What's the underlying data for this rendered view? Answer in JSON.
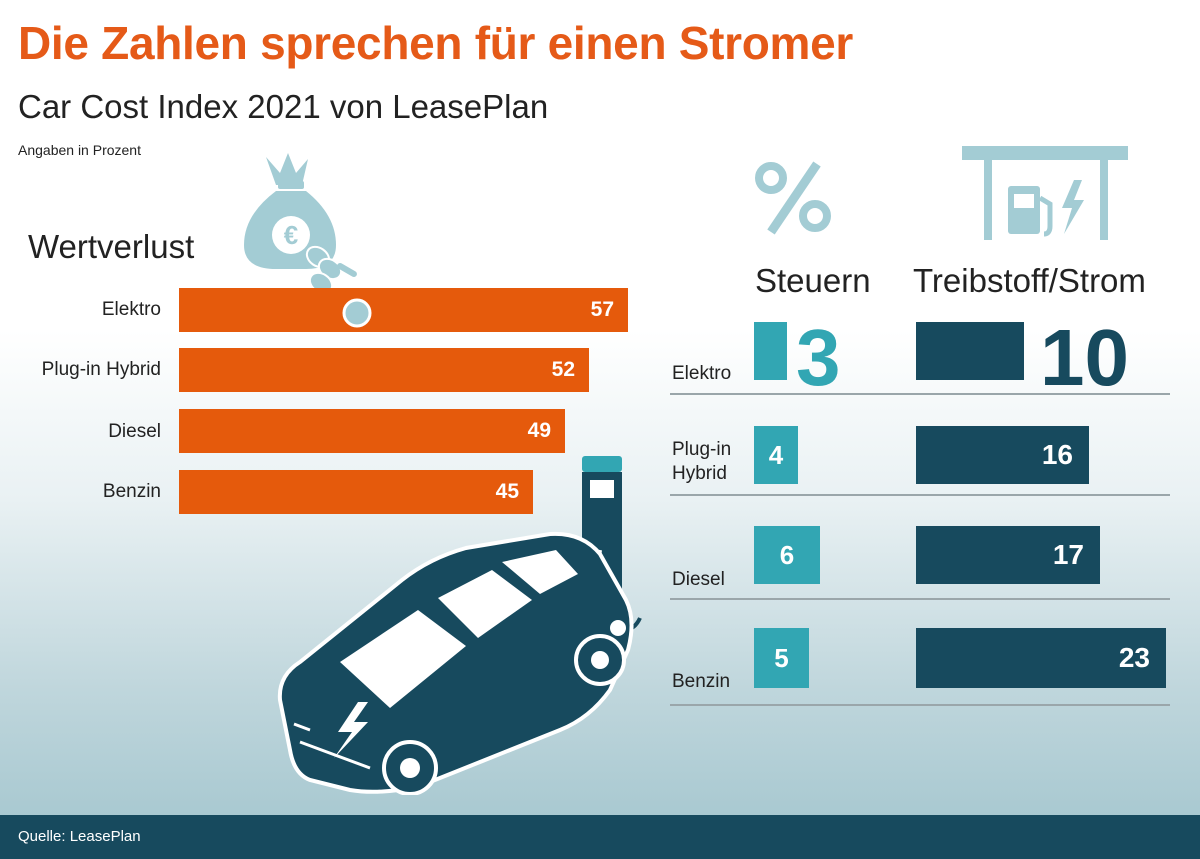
{
  "title": "Die Zahlen sprechen für einen Stromer",
  "subtitle": "Car Cost Index 2021 von LeasePlan",
  "unit_note": "Angaben in Prozent",
  "source": "Quelle: LeasePlan",
  "icons": [
    "money-bag-euro-icon",
    "percent-icon",
    "fuel-pump-charging-station-icon",
    "electric-car-charging-illustration"
  ],
  "colors": {
    "orange": "#e55a0c",
    "teal": "#32a6b3",
    "dark": "#174a5e",
    "light_icon": "#a3ccd4"
  },
  "chart_data": [
    {
      "type": "bar",
      "orientation": "horizontal",
      "title": "Wertverlust",
      "categories": [
        "Elektro",
        "Plug-in Hybrid",
        "Diesel",
        "Benzin"
      ],
      "values": [
        57,
        52,
        49,
        45
      ],
      "value_labels": [
        "57",
        "52",
        "49",
        "45"
      ],
      "color": "#e55a0c"
    },
    {
      "type": "bar",
      "orientation": "horizontal",
      "categories": [
        "Elektro",
        "Plug-in Hybrid",
        "Diesel",
        "Benzin"
      ],
      "category_labels": [
        "Elektro",
        "Plug-in\nHybrid",
        "Diesel",
        "Benzin"
      ],
      "series": [
        {
          "name": "Steuern",
          "values": [
            3,
            4,
            6,
            5
          ],
          "value_labels": [
            "3",
            "4",
            "6",
            "5"
          ],
          "color": "#32a6b3"
        },
        {
          "name": "Treibstoff/Strom",
          "values": [
            10,
            16,
            17,
            23
          ],
          "value_labels": [
            "10",
            "16",
            "17",
            "23"
          ],
          "color": "#174a5e"
        }
      ]
    }
  ]
}
